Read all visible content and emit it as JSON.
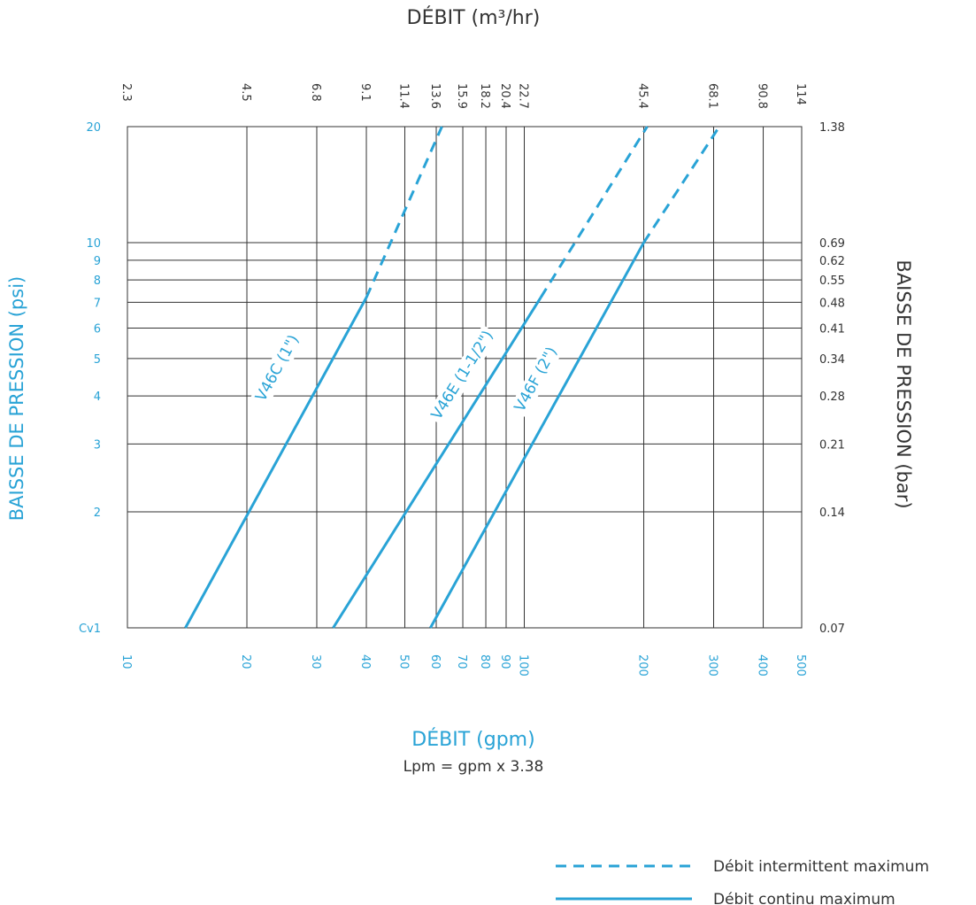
{
  "chart_data": {
    "type": "line",
    "x_scale": "log",
    "y_scale": "log",
    "xlim": [
      10,
      500
    ],
    "ylim": [
      1,
      20
    ],
    "grid": true,
    "top_title": "DÉBIT (m³/hr)",
    "bottom_title": "DÉBIT (gpm)",
    "bottom_subtitle": "Lpm = gpm x 3.38",
    "left_title": "BAISSE DE PRESSION (psi)",
    "right_title": "BAISSE DE PRESSION (bar)",
    "x_ticks": [
      {
        "gpm": 10,
        "label": "10",
        "m3": "2.3"
      },
      {
        "gpm": 20,
        "label": "20",
        "m3": "4.5"
      },
      {
        "gpm": 30,
        "label": "30",
        "m3": "6.8"
      },
      {
        "gpm": 40,
        "label": "40",
        "m3": "9.1"
      },
      {
        "gpm": 50,
        "label": "50",
        "m3": "11.4"
      },
      {
        "gpm": 60,
        "label": "60",
        "m3": "13.6"
      },
      {
        "gpm": 70,
        "label": "70",
        "m3": "15.9"
      },
      {
        "gpm": 80,
        "label": "80",
        "m3": "18.2"
      },
      {
        "gpm": 90,
        "label": "90",
        "m3": "20.4"
      },
      {
        "gpm": 100,
        "label": "100",
        "m3": "22.7"
      },
      {
        "gpm": 200,
        "label": "200",
        "m3": "45.4"
      },
      {
        "gpm": 300,
        "label": "300",
        "m3": "68.1"
      },
      {
        "gpm": 400,
        "label": "400",
        "m3": "90.8"
      },
      {
        "gpm": 500,
        "label": "500",
        "m3": "114"
      }
    ],
    "y_ticks": [
      {
        "psi": 1,
        "label": "Cv1",
        "bar": "0.07"
      },
      {
        "psi": 2,
        "label": "2",
        "bar": "0.14"
      },
      {
        "psi": 3,
        "label": "3",
        "bar": "0.21"
      },
      {
        "psi": 4,
        "label": "4",
        "bar": "0.28"
      },
      {
        "psi": 5,
        "label": "5",
        "bar": "0.34"
      },
      {
        "psi": 6,
        "label": "6",
        "bar": "0.41"
      },
      {
        "psi": 7,
        "label": "7",
        "bar": "0.48"
      },
      {
        "psi": 8,
        "label": "8",
        "bar": "0.55"
      },
      {
        "psi": 9,
        "label": "9",
        "bar": "0.62"
      },
      {
        "psi": 10,
        "label": "10",
        "bar": "0.69"
      },
      {
        "psi": 20,
        "label": "20",
        "bar": "1.38"
      }
    ],
    "series": [
      {
        "name": "V46C (1\")",
        "continuous": [
          [
            14,
            1
          ],
          [
            40,
            7.2
          ]
        ],
        "intermittent": [
          [
            40,
            7.2
          ],
          [
            62,
            20
          ]
        ]
      },
      {
        "name": "V46E (1-1/2\")",
        "continuous": [
          [
            33,
            1
          ],
          [
            110,
            7.2
          ]
        ],
        "intermittent": [
          [
            110,
            7.2
          ],
          [
            204,
            20
          ]
        ]
      },
      {
        "name": "V46F (2\")",
        "continuous": [
          [
            58,
            1
          ],
          [
            200,
            10
          ]
        ],
        "intermittent": [
          [
            200,
            10
          ],
          [
            310,
            20
          ]
        ]
      }
    ],
    "legend": [
      {
        "style": "dashed",
        "label": "Débit intermittent maximum"
      },
      {
        "style": "solid",
        "label": "Débit continu maximum"
      }
    ],
    "colors": {
      "series": "#29a3d6",
      "grid": "#333333",
      "text": "#333333"
    }
  }
}
